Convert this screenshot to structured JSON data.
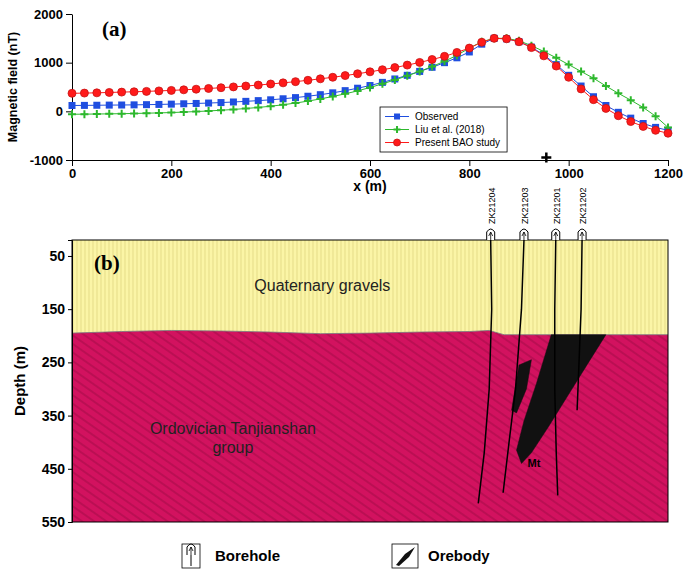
{
  "chart_data": [
    {
      "type": "line",
      "panel_label": "(a)",
      "x_label": "x (m)",
      "y_label": "Magnetic field (nT)",
      "xlim": [
        0,
        1200
      ],
      "xticks": [
        0,
        200,
        400,
        600,
        800,
        1000,
        1200
      ],
      "ylim": [
        -1000,
        2000
      ],
      "yticks": [
        -1000,
        0,
        1000,
        2000
      ],
      "grid": false,
      "legend": "lower right",
      "x": [
        0,
        25,
        50,
        75,
        100,
        125,
        150,
        175,
        200,
        225,
        250,
        275,
        300,
        325,
        350,
        375,
        400,
        425,
        450,
        475,
        500,
        525,
        550,
        575,
        600,
        625,
        650,
        675,
        700,
        725,
        750,
        775,
        800,
        825,
        850,
        875,
        900,
        925,
        950,
        975,
        1000,
        1025,
        1050,
        1075,
        1100,
        1125,
        1150,
        1175,
        1200
      ],
      "series": [
        {
          "name": "Observed",
          "color": "#1f4ee0",
          "marker": "square",
          "line_style": "solid",
          "values": [
            120,
            122,
            125,
            128,
            130,
            133,
            137,
            142,
            148,
            155,
            162,
            170,
            180,
            192,
            205,
            220,
            237,
            258,
            282,
            310,
            342,
            380,
            425,
            475,
            530,
            595,
            665,
            740,
            820,
            905,
            1000,
            1100,
            1220,
            1380,
            1500,
            1490,
            1430,
            1320,
            1160,
            960,
            740,
            520,
            300,
            120,
            -20,
            -140,
            -250,
            -330,
            -390
          ]
        },
        {
          "name": "Liu et al. (2018)",
          "color": "#2db82d",
          "marker": "plus",
          "line_style": "solid",
          "values": [
            -60,
            -58,
            -55,
            -52,
            -48,
            -44,
            -38,
            -32,
            -25,
            -15,
            -5,
            8,
            22,
            38,
            58,
            80,
            105,
            135,
            170,
            210,
            255,
            305,
            360,
            420,
            490,
            565,
            645,
            730,
            820,
            920,
            1030,
            1150,
            1300,
            1430,
            1500,
            1500,
            1450,
            1350,
            1230,
            1100,
            960,
            820,
            680,
            520,
            370,
            230,
            80,
            -100,
            -330
          ]
        },
        {
          "name": "Present BAO study",
          "color": "#ff1a1a",
          "marker": "circle",
          "line_style": "solid",
          "values": [
            370,
            375,
            380,
            388,
            395,
            402,
            410,
            420,
            430,
            442,
            455,
            470,
            485,
            502,
            520,
            540,
            562,
            585,
            610,
            638,
            668,
            700,
            735,
            772,
            812,
            855,
            900,
            950,
            1005,
            1065,
            1130,
            1210,
            1300,
            1420,
            1500,
            1490,
            1430,
            1310,
            1140,
            930,
            700,
            460,
            240,
            60,
            -90,
            -210,
            -310,
            -390,
            -450
          ]
        }
      ],
      "points": [
        {
          "x": 955,
          "y": -950,
          "color": "#000000",
          "marker": "plus"
        }
      ]
    },
    {
      "type": "cross_section",
      "panel_label": "(b)",
      "y_label": "Depth (m)",
      "xlim": [
        0,
        1200
      ],
      "ylim": [
        20,
        550
      ],
      "yticks": [
        50,
        150,
        250,
        350,
        450,
        550
      ],
      "tick_labels": "y",
      "legend": "bottom",
      "legend_entries": [
        "Borehole",
        "Orebody"
      ],
      "layers": [
        {
          "name": "Quaternary gravels",
          "color": "#fbf5a6"
        },
        {
          "name": "Ordovician Tanjianshan group",
          "color": "#d2125f"
        }
      ],
      "boundary": {
        "x": [
          0,
          100,
          200,
          300,
          400,
          500,
          600,
          700,
          800,
          840,
          870,
          1200
        ],
        "depth": [
          195,
          192,
          190,
          191,
          193,
          196,
          195,
          193,
          192,
          190,
          198,
          198
        ]
      },
      "boreholes": [
        {
          "name": "ZK21204",
          "x": [
            843,
            845,
            840,
            830,
            818
          ],
          "depth": [
            20,
            150,
            300,
            420,
            515
          ]
        },
        {
          "name": "ZK21203",
          "x": [
            910,
            905,
            893,
            880,
            868
          ],
          "depth": [
            20,
            150,
            300,
            400,
            495
          ]
        },
        {
          "name": "ZK21201",
          "x": [
            974,
            972,
            972,
            975,
            978
          ],
          "depth": [
            20,
            150,
            300,
            420,
            500
          ]
        },
        {
          "name": "ZK21202",
          "x": [
            1027,
            1025,
            1020,
            1017
          ],
          "depth": [
            20,
            150,
            270,
            340
          ]
        }
      ],
      "orebodies": [
        {
          "label": "Mt",
          "color": "#111111",
          "x": [
            965,
            1075,
            1040,
            1000,
            960,
            925,
            905,
            895,
            910,
            935
          ],
          "depth": [
            198,
            198,
            250,
            310,
            370,
            420,
            440,
            415,
            360,
            290
          ]
        },
        {
          "color": "#111111",
          "x": [
            900,
            925,
            915,
            895,
            885
          ],
          "depth": [
            255,
            245,
            300,
            345,
            340
          ]
        }
      ]
    }
  ]
}
